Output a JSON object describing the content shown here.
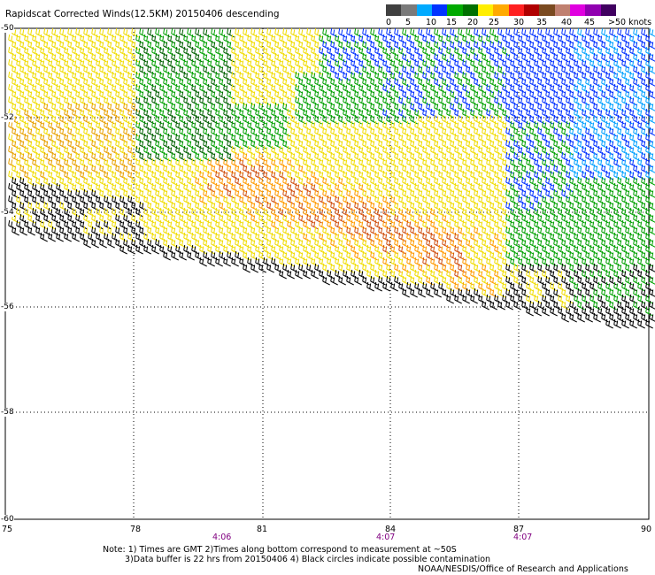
{
  "title": "Rapidscat Corrected Winds(12.5KM) 20150406 descending",
  "colorbar": {
    "colors": [
      "#404040",
      "#7a7a7a",
      "#00aaff",
      "#0033ff",
      "#00aa00",
      "#007000",
      "#ffee00",
      "#ffaa00",
      "#ff2020",
      "#b00000",
      "#7a4a20",
      "#c08070",
      "#e000e0",
      "#9000b0",
      "#400060"
    ],
    "labels": [
      "0",
      "5",
      "10",
      "15",
      "20",
      "25",
      "30",
      "35",
      "40",
      "45",
      ">50 knots"
    ]
  },
  "axes": {
    "x_labels": [
      "75",
      "78",
      "81",
      "84",
      "87",
      "90"
    ],
    "y_labels": [
      "-50",
      "-52",
      "-54",
      "-56",
      "-58",
      "-60"
    ]
  },
  "times": [
    "4:06",
    "4:07",
    "4:07"
  ],
  "notes": {
    "line1": "Note: 1) Times are GMT 2)Times along bottom correspond to measurement at ~50S",
    "line2": "3)Data buffer is 22 hrs from 20150406 4) Black circles indicate possible contamination",
    "line3": "NOAA/NESDIS/Office of Research and Applications"
  }
}
